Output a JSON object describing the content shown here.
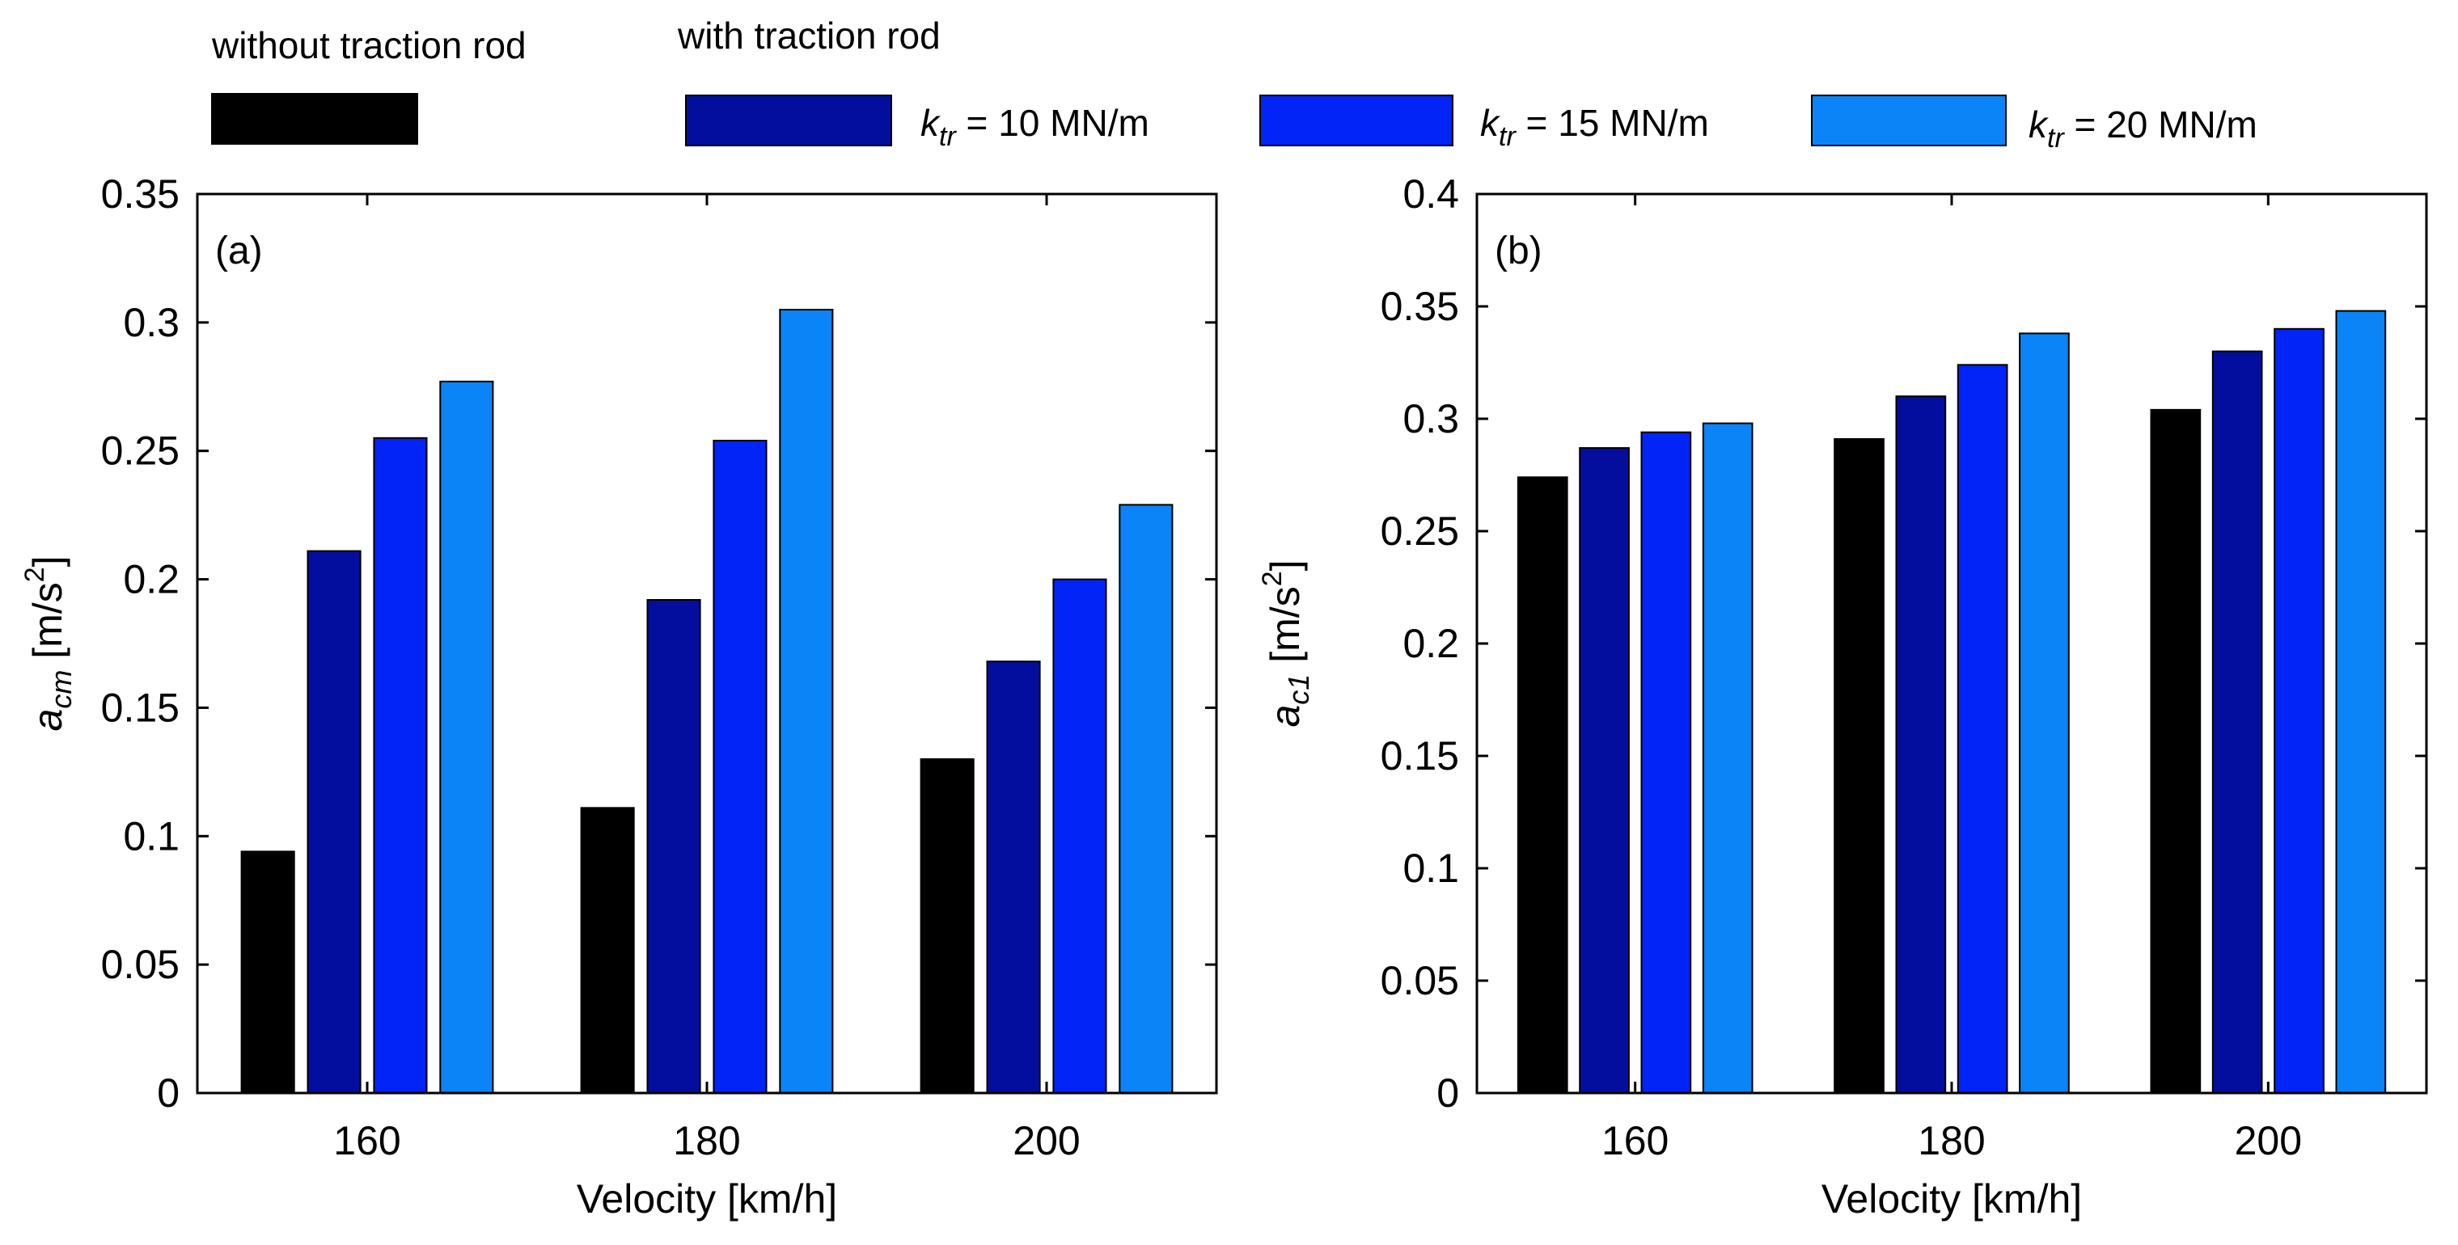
{
  "legend": {
    "group_without": "without traction rod",
    "group_with": "with traction rod",
    "k_symbol": "k",
    "k_sub": "tr",
    "entries": [
      {
        "name": "without traction rod",
        "color": "#000000"
      },
      {
        "name": "k_tr = 10 MN/m",
        "value_text": " = 10 MN/m",
        "color": "#040e9e"
      },
      {
        "name": "k_tr = 15 MN/m",
        "value_text": " = 15 MN/m",
        "color": "#0324f6"
      },
      {
        "name": "k_tr = 20 MN/m",
        "value_text": " = 20 MN/m",
        "color": "#0a84f6"
      }
    ]
  },
  "chart_data": [
    {
      "type": "bar",
      "panel_label": "(a)",
      "xlabel": "Velocity [km/h]",
      "ylabel_main": "a",
      "ylabel_sub": "cm",
      "ylabel_unit": " [m/s",
      "ylabel_sup": "2",
      "ylabel_close": "]",
      "categories": [
        "160",
        "180",
        "200"
      ],
      "ylim": [
        0,
        0.35
      ],
      "yticks": [
        "0",
        "0.05",
        "0.1",
        "0.15",
        "0.2",
        "0.25",
        "0.3",
        "0.35"
      ],
      "series": [
        {
          "name": "without traction rod",
          "values": [
            0.094,
            0.111,
            0.13
          ]
        },
        {
          "name": "k_tr = 10 MN/m",
          "values": [
            0.211,
            0.192,
            0.168
          ]
        },
        {
          "name": "k_tr = 15 MN/m",
          "values": [
            0.255,
            0.254,
            0.2
          ]
        },
        {
          "name": "k_tr = 20 MN/m",
          "values": [
            0.277,
            0.305,
            0.229
          ]
        }
      ]
    },
    {
      "type": "bar",
      "panel_label": "(b)",
      "xlabel": "Velocity [km/h]",
      "ylabel_main": "a",
      "ylabel_sub": "c1",
      "ylabel_unit": " [m/s",
      "ylabel_sup": "2",
      "ylabel_close": "]",
      "categories": [
        "160",
        "180",
        "200"
      ],
      "ylim": [
        0,
        0.4
      ],
      "yticks": [
        "0",
        "0.05",
        "0.1",
        "0.15",
        "0.2",
        "0.25",
        "0.3",
        "0.35",
        "0.4"
      ],
      "series": [
        {
          "name": "without traction rod",
          "values": [
            0.274,
            0.291,
            0.304
          ]
        },
        {
          "name": "k_tr = 10 MN/m",
          "values": [
            0.287,
            0.31,
            0.33
          ]
        },
        {
          "name": "k_tr = 15 MN/m",
          "values": [
            0.294,
            0.324,
            0.34
          ]
        },
        {
          "name": "k_tr = 20 MN/m",
          "values": [
            0.298,
            0.338,
            0.348
          ]
        }
      ]
    }
  ]
}
